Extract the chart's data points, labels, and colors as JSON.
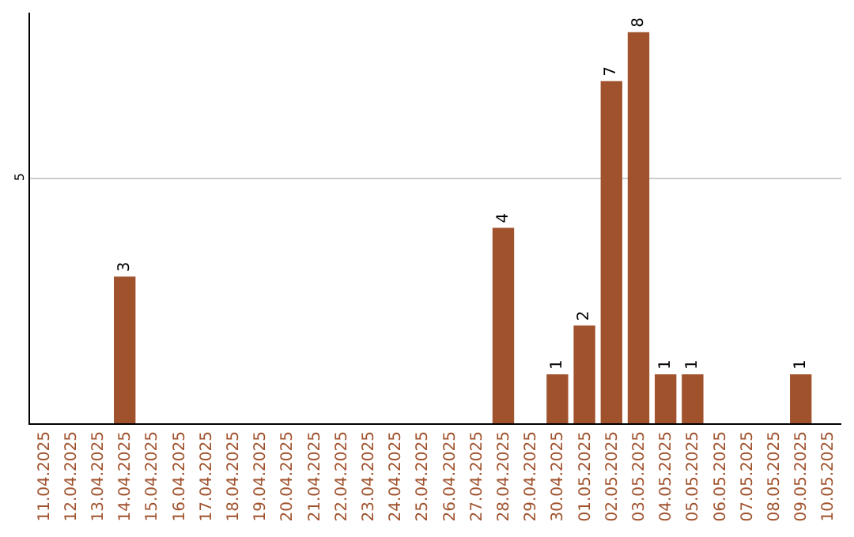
{
  "chart_data": {
    "type": "bar",
    "categories": [
      "11.04.2025",
      "12.04.2025",
      "13.04.2025",
      "14.04.2025",
      "15.04.2025",
      "16.04.2025",
      "17.04.2025",
      "18.04.2025",
      "19.04.2025",
      "20.04.2025",
      "21.04.2025",
      "22.04.2025",
      "23.04.2025",
      "24.04.2025",
      "25.04.2025",
      "26.04.2025",
      "27.04.2025",
      "28.04.2025",
      "29.04.2025",
      "30.04.2025",
      "01.05.2025",
      "02.05.2025",
      "03.05.2025",
      "04.05.2025",
      "05.05.2025",
      "06.05.2025",
      "07.05.2025",
      "08.05.2025",
      "09.05.2025",
      "10.05.2025"
    ],
    "values": [
      0,
      0,
      0,
      3,
      0,
      0,
      0,
      0,
      0,
      0,
      0,
      0,
      0,
      0,
      0,
      0,
      0,
      4,
      0,
      1,
      2,
      7,
      8,
      1,
      1,
      0,
      0,
      0,
      1,
      0
    ],
    "value_labels": [
      null,
      null,
      null,
      "3",
      null,
      null,
      null,
      null,
      null,
      null,
      null,
      null,
      null,
      null,
      null,
      null,
      null,
      "4",
      null,
      "1",
      "2",
      "7",
      "8",
      "1",
      "1",
      null,
      null,
      null,
      "1",
      null
    ],
    "color": "#a0522d",
    "ylim": [
      0,
      8.4
    ],
    "yticks": [
      5
    ],
    "grid": "y",
    "legend": false
  }
}
